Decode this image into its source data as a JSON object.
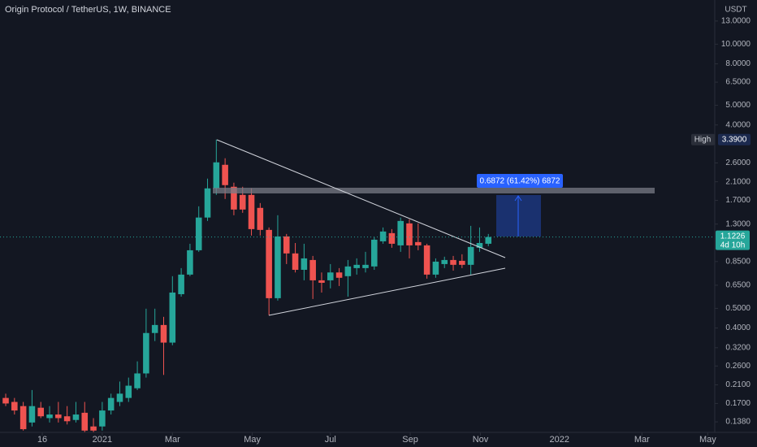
{
  "chart_data": {
    "type": "candlestick",
    "title": "Origin Protocol / TetherUS, 1W, BINANCE",
    "currency": "USDT",
    "x": [
      0,
      1,
      2,
      3,
      4,
      5,
      6,
      7,
      8,
      9,
      10,
      11,
      12,
      13,
      14,
      15,
      16,
      17,
      18,
      19,
      20,
      21,
      22,
      23,
      24,
      25,
      26,
      27,
      28,
      29,
      30,
      31,
      32,
      33,
      34,
      35,
      36,
      37,
      38,
      39,
      40,
      41,
      42,
      43,
      44,
      45,
      46,
      47,
      48,
      49,
      50,
      51,
      52,
      53,
      54,
      55
    ],
    "series": {
      "open": [
        0.181,
        0.173,
        0.165,
        0.137,
        0.162,
        0.144,
        0.15,
        0.147,
        0.141,
        0.153,
        0.131,
        0.131,
        0.157,
        0.173,
        0.181,
        0.202,
        0.239,
        0.378,
        0.414,
        0.339,
        0.587,
        0.733,
        0.966,
        1.4,
        1.949,
        2.546,
        1.985,
        1.81,
        1.81,
        1.562,
        1.217,
        0.561,
        1.13,
        0.932,
        0.774,
        0.865,
        0.687,
        0.687,
        0.751,
        0.72,
        0.789,
        0.789,
        0.804,
        1.069,
        1.173,
        1.021,
        1.31,
        1.06,
        1.021,
        0.733,
        0.826,
        0.865,
        0.857,
        0.819,
        0.994,
        1.04
      ],
      "high": [
        0.19,
        0.181,
        0.173,
        0.198,
        0.173,
        0.165,
        0.173,
        0.165,
        0.173,
        0.173,
        0.144,
        0.173,
        0.19,
        0.218,
        0.228,
        0.274,
        0.498,
        0.498,
        0.454,
        0.72,
        0.789,
        1.04,
        1.59,
        2.177,
        3.39,
        2.742,
        2.079,
        1.985,
        1.949,
        1.65,
        1.251,
        1.437,
        1.162,
        1.049,
        1.04,
        0.906,
        0.751,
        0.826,
        0.789,
        0.865,
        0.881,
        0.949,
        1.12,
        1.251,
        1.228,
        1.4,
        1.372,
        1.31,
        1.04,
        0.881,
        0.898,
        0.906,
        0.923,
        1.274,
        1.251,
        1.162
      ],
      "low": [
        0.165,
        0.15,
        0.125,
        0.131,
        0.144,
        0.137,
        0.137,
        0.134,
        0.137,
        0.123,
        0.123,
        0.125,
        0.15,
        0.165,
        0.173,
        0.198,
        0.228,
        0.345,
        0.235,
        0.329,
        0.571,
        0.72,
        0.949,
        1.347,
        1.81,
        1.728,
        1.437,
        1.477,
        1.141,
        1.141,
        0.463,
        0.546,
        0.826,
        0.751,
        0.687,
        0.556,
        0.598,
        0.627,
        0.644,
        0.571,
        0.733,
        0.751,
        0.774,
        1.04,
        0.994,
        0.949,
        0.881,
        0.966,
        0.7,
        0.707,
        0.789,
        0.767,
        0.789,
        0.733,
        0.949,
        1.012
      ],
      "close": [
        0.17,
        0.157,
        0.127,
        0.165,
        0.147,
        0.15,
        0.144,
        0.139,
        0.15,
        0.125,
        0.125,
        0.157,
        0.181,
        0.19,
        0.208,
        0.239,
        0.378,
        0.414,
        0.339,
        0.598,
        0.733,
        0.966,
        1.4,
        1.949,
        2.618,
        2.022,
        1.533,
        1.533,
        1.228,
        1.217,
        0.561,
        1.13,
        0.932,
        0.774,
        0.881,
        0.687,
        0.668,
        0.751,
        0.707,
        0.804,
        0.819,
        0.819,
        1.089,
        1.195,
        1.04,
        1.347,
        1.021,
        1.021,
        0.733,
        0.849,
        0.865,
        0.819,
        0.819,
        1.003,
        1.049,
        1.1226
      ]
    },
    "up_color": "#26a69a",
    "down_color": "#ef5350",
    "xlim": [
      -0.65,
      80.8
    ],
    "xticks": [
      {
        "value": 4.17,
        "label": "16"
      },
      {
        "value": 11.0,
        "label": "2021"
      },
      {
        "value": 19.0,
        "label": "Mar"
      },
      {
        "value": 28.1,
        "label": "May"
      },
      {
        "value": 37.0,
        "label": "Jul"
      },
      {
        "value": 46.1,
        "label": "Sep"
      },
      {
        "value": 54.1,
        "label": "Nov"
      },
      {
        "value": 63.1,
        "label": "2022"
      },
      {
        "value": 72.5,
        "label": "Mar"
      },
      {
        "value": 80.0,
        "label": "May"
      }
    ],
    "ylim": [
      0.1225,
      16.5
    ],
    "log_scale": true,
    "grid": false,
    "yticks": [
      {
        "value": 13,
        "label": "13.0000"
      },
      {
        "value": 10,
        "label": "10.0000"
      },
      {
        "value": 8,
        "label": "8.0000"
      },
      {
        "value": 6.5,
        "label": "6.5000"
      },
      {
        "value": 5,
        "label": "5.0000"
      },
      {
        "value": 4,
        "label": "4.0000"
      },
      {
        "value": 2.6,
        "label": "2.6000"
      },
      {
        "value": 2.1,
        "label": "2.1000"
      },
      {
        "value": 1.7,
        "label": "1.7000"
      },
      {
        "value": 1.3,
        "label": "1.3000"
      },
      {
        "value": 0.85,
        "label": "0.8500"
      },
      {
        "value": 0.65,
        "label": "0.6500"
      },
      {
        "value": 0.5,
        "label": "0.5000"
      },
      {
        "value": 0.4,
        "label": "0.4000"
      },
      {
        "value": 0.32,
        "label": "0.3200"
      },
      {
        "value": 0.26,
        "label": "0.2600"
      },
      {
        "value": 0.21,
        "label": "0.2100"
      },
      {
        "value": 0.17,
        "label": "0.1700"
      },
      {
        "value": 0.138,
        "label": "0.1380"
      }
    ],
    "high_marker": {
      "label": "High",
      "value": 3.39,
      "value_label": "3.3900"
    },
    "last_price": {
      "value": 1.1226,
      "value_label": "1.1226",
      "countdown": "4d 10h"
    },
    "measure": {
      "text": "0.6872 (61.42%) 6872"
    }
  }
}
